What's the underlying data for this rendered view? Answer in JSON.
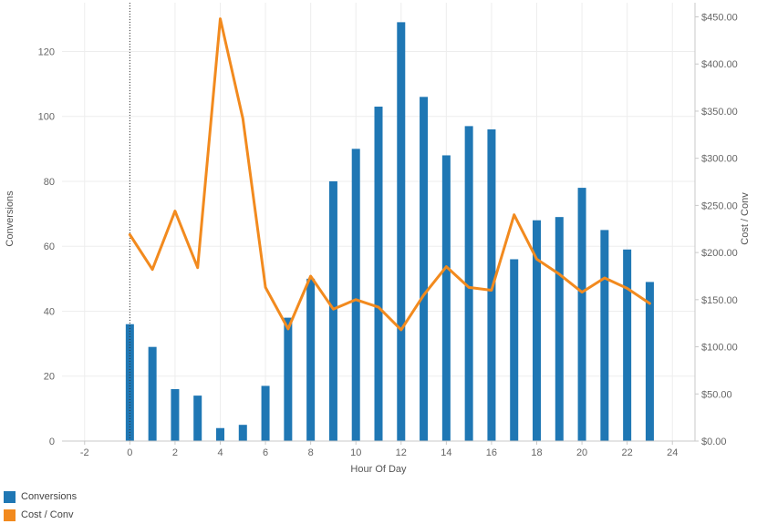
{
  "chart_data": {
    "type": "bar",
    "xlabel": "Hour Of Day",
    "ylabel": "Conversions",
    "y2label": "Cost / Conv",
    "xlim": [
      -3,
      25
    ],
    "ylim": [
      0,
      135
    ],
    "y2lim": [
      0,
      465
    ],
    "x_ticks": [
      "-2",
      "0",
      "2",
      "4",
      "6",
      "8",
      "10",
      "12",
      "14",
      "16",
      "18",
      "20",
      "22",
      "24"
    ],
    "y_ticks": [
      "0",
      "20",
      "40",
      "60",
      "80",
      "100",
      "120"
    ],
    "y2_ticks": [
      "$0.00",
      "$50.00",
      "$100.00",
      "$150.00",
      "$200.00",
      "$250.00",
      "$300.00",
      "$350.00",
      "$400.00",
      "$450.00"
    ],
    "x": [
      0,
      1,
      2,
      3,
      4,
      5,
      6,
      7,
      8,
      9,
      10,
      11,
      12,
      13,
      14,
      15,
      16,
      17,
      18,
      19,
      20,
      21,
      22,
      23
    ],
    "series": [
      {
        "name": "Conversions",
        "type": "bar",
        "axis": "left",
        "color": "#1f77b4",
        "values": [
          36,
          29,
          16,
          14,
          4,
          5,
          17,
          38,
          50,
          80,
          90,
          103,
          129,
          106,
          88,
          97,
          96,
          56,
          68,
          69,
          78,
          65,
          59,
          49
        ]
      },
      {
        "name": "Cost / Conv",
        "type": "line",
        "axis": "right",
        "color": "#f28a1e",
        "values": [
          219,
          182,
          244,
          184,
          448,
          342,
          163,
          119,
          175,
          140,
          150,
          142,
          118,
          155,
          185,
          163,
          160,
          240,
          193,
          177,
          158,
          173,
          162,
          146
        ]
      }
    ],
    "legend": "bottom-left",
    "grid": true
  }
}
